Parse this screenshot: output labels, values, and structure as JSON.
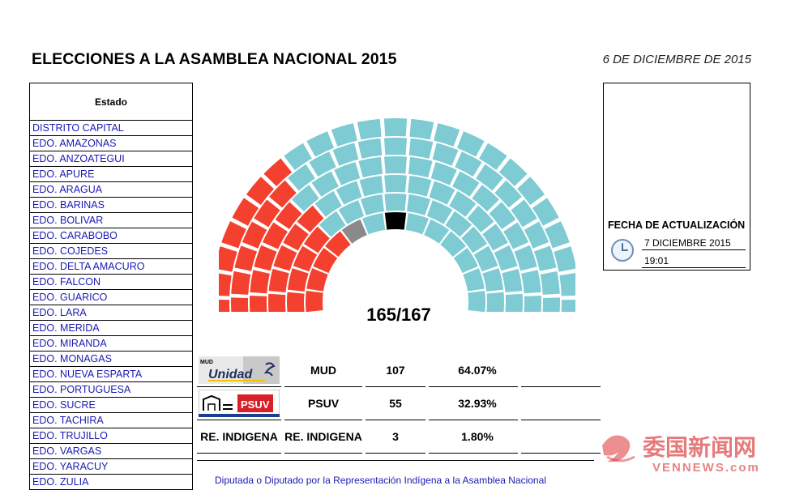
{
  "header": {
    "title": "ELECCIONES A LA ASAMBLEA NACIONAL 2015",
    "date": "6 DE DICIEMBRE DE 2015"
  },
  "states": {
    "header": "Estado",
    "items": [
      "DISTRITO CAPITAL",
      "EDO. AMAZONAS",
      "EDO. ANZOATEGUI",
      "EDO. APURE",
      "EDO. ARAGUA",
      "EDO. BARINAS",
      "EDO. BOLIVAR",
      "EDO. CARABOBO",
      "EDO. COJEDES",
      "EDO. DELTA AMACURO",
      "EDO. FALCON",
      "EDO. GUARICO",
      "EDO. LARA",
      "EDO. MERIDA",
      "EDO. MIRANDA",
      "EDO. MONAGAS",
      "EDO. NUEVA ESPARTA",
      "EDO. PORTUGUESA",
      "EDO. SUCRE",
      "EDO. TACHIRA",
      "EDO. TRUJILLO",
      "EDO. VARGAS",
      "EDO. YARACUY",
      "EDO. ZULIA"
    ]
  },
  "seats": {
    "count_label": "165/167",
    "colors": {
      "mud": "#7ecbd3",
      "psuv": "#f4402e",
      "indigena": "#000000",
      "pending": "#8a8a8a"
    }
  },
  "results": [
    {
      "logo": "unidad-logo",
      "logo_text": "Unidad",
      "logo_small": "MUD",
      "party": "MUD",
      "seats": "107",
      "percent": "64.07%"
    },
    {
      "logo": "psuv-logo",
      "logo_text": "PSUV",
      "party": "PSUV",
      "seats": "55",
      "percent": "32.93%"
    },
    {
      "logo_label": "RE. INDIGENA",
      "party": "RE. INDIGENA",
      "seats": "3",
      "percent": "1.80%"
    }
  ],
  "footnote": "Diputada o Diputado por la Representación Indígena a la Asamblea Nacional",
  "update": {
    "label": "FECHA DE ACTUALIZACIÓN",
    "date": "7 DICIEMBRE 2015",
    "time": "19:01"
  },
  "watermark": {
    "cn": "委国新闻网",
    "en": "VENNEWS.com"
  }
}
